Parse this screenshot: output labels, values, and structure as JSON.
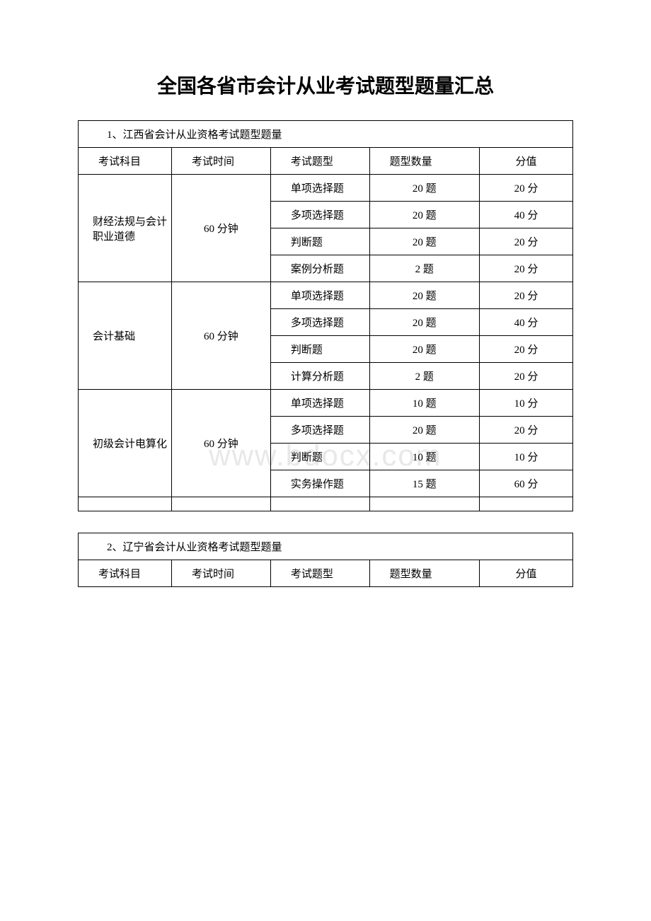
{
  "title": "全国各省市会计从业考试题型题量汇总",
  "watermark": "www.bdocx.com",
  "table1": {
    "section_title": "1、江西省会计从业资格考试题型题量",
    "headers": {
      "h1": "考试科目",
      "h2": "考试时间",
      "h3": "考试题型",
      "h4": "题型数量",
      "h5": "分值"
    },
    "subjects": [
      {
        "name": "财经法规与会计职业道德",
        "duration": "60 分钟",
        "rows": [
          {
            "type": "单项选择题",
            "count": "20 题",
            "score": "20 分"
          },
          {
            "type": "多项选择题",
            "count": "20 题",
            "score": "40 分"
          },
          {
            "type": "判断题",
            "count": "20 题",
            "score": "20 分"
          },
          {
            "type": "案例分析题",
            "count": "2 题",
            "score": "20 分"
          }
        ]
      },
      {
        "name": "会计基础",
        "duration": "60 分钟",
        "rows": [
          {
            "type": "单项选择题",
            "count": "20 题",
            "score": "20 分"
          },
          {
            "type": "多项选择题",
            "count": "20 题",
            "score": "40 分"
          },
          {
            "type": "判断题",
            "count": "20 题",
            "score": "20 分"
          },
          {
            "type": "计算分析题",
            "count": "2 题",
            "score": "20 分"
          }
        ]
      },
      {
        "name": "初级会计电算化",
        "duration": "60 分钟",
        "rows": [
          {
            "type": "单项选择题",
            "count": "10 题",
            "score": "10 分"
          },
          {
            "type": "多项选择题",
            "count": "20 题",
            "score": "20 分"
          },
          {
            "type": "判断题",
            "count": "10 题",
            "score": "10 分"
          },
          {
            "type": "实务操作题",
            "count": "15 题",
            "score": "60 分"
          }
        ]
      }
    ]
  },
  "table2": {
    "section_title": "2、辽宁省会计从业资格考试题型题量",
    "headers": {
      "h1": "考试科目",
      "h2": "考试时间",
      "h3": "考试题型",
      "h4": "题型数量",
      "h5": "分值"
    }
  }
}
